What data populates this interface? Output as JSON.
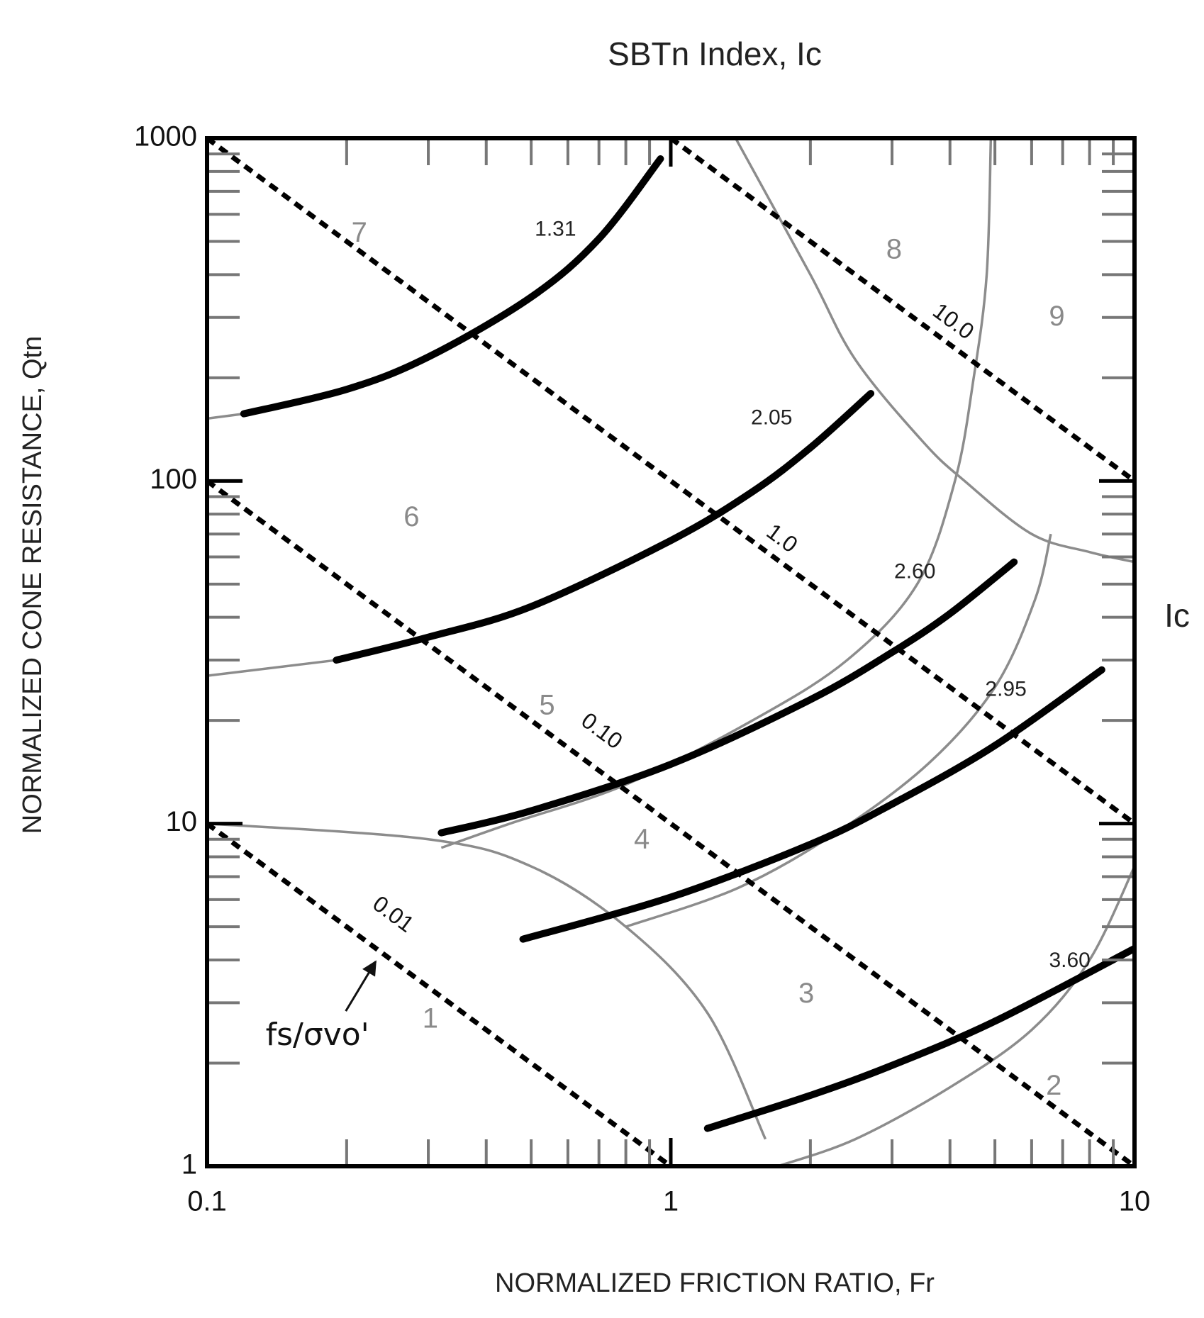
{
  "chart_data": {
    "type": "line",
    "title": "SBTn Index, Ic",
    "x_label": "NORMALIZED FRICTION RATIO, Fr",
    "y_label": "NORMALIZED CONE RESISTANCE, Qtn",
    "right_label": "Ic",
    "xscale": "log",
    "yscale": "log",
    "xlim": [
      0.1,
      10
    ],
    "ylim": [
      1,
      1000
    ],
    "xticks": [
      0.1,
      1,
      10
    ],
    "yticks": [
      1,
      10,
      100,
      1000
    ],
    "xminorticks": [
      0.2,
      0.3,
      0.4,
      0.5,
      0.6,
      0.7,
      0.8,
      0.9,
      2,
      3,
      4,
      5,
      6,
      7,
      8,
      9
    ],
    "yminorticks": [
      2,
      3,
      4,
      5,
      6,
      7,
      8,
      9,
      20,
      30,
      40,
      50,
      60,
      70,
      80,
      90,
      200,
      300,
      400,
      500,
      600,
      700,
      800,
      900
    ],
    "series": [
      {
        "style": "thin",
        "color": "#8c8c8c",
        "x": [
          0.1,
          0.12
        ],
        "y": [
          152,
          157
        ]
      },
      {
        "style": "thin",
        "color": "#8c8c8c",
        "x": [
          0.1,
          0.19
        ],
        "y": [
          27,
          30
        ]
      },
      {
        "style": "thin",
        "color": "#8c8c8c",
        "x": [
          0.1,
          0.3,
          0.5,
          0.8,
          1.2,
          1.6
        ],
        "y": [
          10,
          9,
          7.5,
          5,
          2.8,
          1.2
        ]
      },
      {
        "style": "thin",
        "color": "#8c8c8c",
        "x": [
          1.38,
          2,
          2.5,
          3.5,
          4.3,
          6,
          8,
          10
        ],
        "y": [
          1000,
          400,
          226,
          130,
          100,
          70,
          62,
          58
        ]
      },
      {
        "style": "thin",
        "color": "#8c8c8c",
        "x": [
          4.9,
          4.8,
          4.5,
          4.1,
          3.4,
          2.4,
          1.5,
          0.8,
          0.45,
          0.32
        ],
        "y": [
          1000,
          400,
          200,
          100,
          50,
          30,
          20,
          13,
          10,
          8.5
        ]
      },
      {
        "style": "thin",
        "color": "#8c8c8c",
        "x": [
          6.6,
          6.1,
          5,
          3.6,
          2.3,
          1.4,
          0.8
        ],
        "y": [
          70,
          45,
          25,
          15,
          9.5,
          6.5,
          5
        ]
      },
      {
        "style": "thin",
        "color": "#8c8c8c",
        "x": [
          10,
          8,
          6,
          4,
          2.5,
          1.7
        ],
        "y": [
          7.5,
          4,
          2.5,
          1.7,
          1.2,
          1
        ]
      },
      {
        "name": "1.31",
        "style": "thick",
        "color": "#000000",
        "x": [
          0.12,
          0.2,
          0.3,
          0.5,
          0.7,
          0.95
        ],
        "y": [
          157,
          185,
          230,
          344,
          509,
          871
        ],
        "label_x": 0.564,
        "label_y": 539
      },
      {
        "name": "2.05",
        "style": "thick",
        "color": "#000000",
        "x": [
          0.19,
          0.3,
          0.5,
          1,
          1.5,
          2,
          2.7
        ],
        "y": [
          30,
          35,
          43,
          67,
          93,
          125,
          180
        ],
        "label_x": 1.65,
        "label_y": 152
      },
      {
        "name": "2.60",
        "style": "thick",
        "color": "#000000",
        "x": [
          0.32,
          0.5,
          1,
          2,
          3,
          4,
          5.5
        ],
        "y": [
          9.4,
          10.9,
          14.9,
          23,
          31.6,
          41,
          58
        ],
        "label_x": 3.36,
        "label_y": 54
      },
      {
        "name": "2.95",
        "style": "thick",
        "color": "#000000",
        "x": [
          0.48,
          1,
          2,
          3,
          5,
          8.5
        ],
        "y": [
          4.6,
          6.1,
          8.7,
          11.4,
          16.9,
          28.1
        ],
        "label_x": 5.28,
        "label_y": 24.5
      },
      {
        "name": "3.60",
        "style": "thick",
        "color": "#000000",
        "x": [
          1.2,
          2,
          3,
          5,
          10
        ],
        "y": [
          1.29,
          1.61,
          1.97,
          2.65,
          4.32
        ],
        "label_x": 7.25,
        "label_y": 3.96
      },
      {
        "name": "0.01",
        "style": "dashed",
        "color": "#000000",
        "x": [
          0.1,
          1
        ],
        "y": [
          10,
          1
        ],
        "label_x": 0.251,
        "label_y": 5.4
      },
      {
        "name": "0.10",
        "style": "dashed",
        "color": "#000000",
        "x": [
          0.1,
          10
        ],
        "y": [
          100,
          1
        ],
        "label_x": 0.707,
        "label_y": 18.5
      },
      {
        "name": "1.0",
        "style": "dashed",
        "color": "#000000",
        "x": [
          0.1,
          10
        ],
        "y": [
          1000,
          10
        ],
        "label_x": 1.73,
        "label_y": 67.5
      },
      {
        "name": "10.0",
        "style": "dashed",
        "color": "#000000",
        "x": [
          1,
          10
        ],
        "y": [
          1000,
          100
        ],
        "label_x": 4.05,
        "label_y": 290
      }
    ],
    "zones": [
      {
        "text": "1",
        "x": 0.303,
        "y": 2.67
      },
      {
        "text": "2",
        "x": 6.7,
        "y": 1.7
      },
      {
        "text": "3",
        "x": 1.96,
        "y": 3.16
      },
      {
        "text": "4",
        "x": 0.866,
        "y": 8.9
      },
      {
        "text": "5",
        "x": 0.541,
        "y": 21.9
      },
      {
        "text": "6",
        "x": 0.276,
        "y": 77.7
      },
      {
        "text": "7",
        "x": 0.213,
        "y": 525
      },
      {
        "text": "8",
        "x": 3.03,
        "y": 469
      },
      {
        "text": "9",
        "x": 6.8,
        "y": 299
      }
    ],
    "annotation": {
      "text": "fs/σvo'",
      "x": 0.173,
      "y": 2.39,
      "arrow_to_x": 0.231,
      "arrow_to_y": 3.96
    }
  }
}
